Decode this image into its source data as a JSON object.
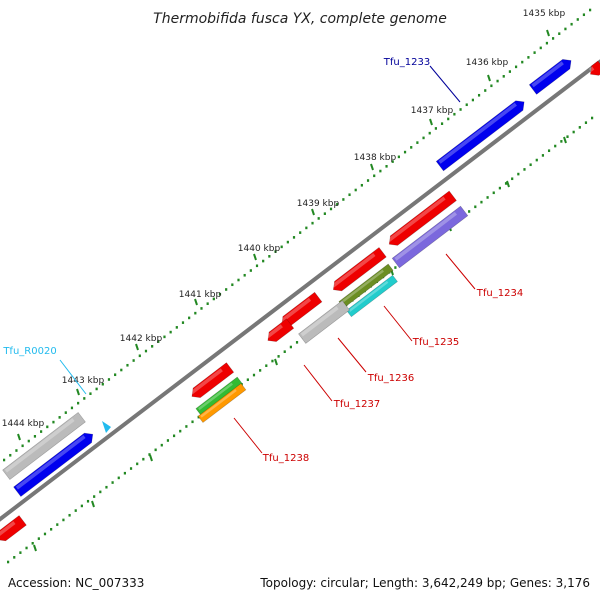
{
  "title": "Thermobifida fusca YX, complete genome",
  "footer": {
    "accession": "Accession: NC_007333",
    "summary": "Topology: circular; Length: 3,642,249 bp; Genes: 3,176"
  },
  "ruler": {
    "unit": "kbp",
    "ticks": [
      {
        "kbp": 1435,
        "label": "1435 kbp"
      },
      {
        "kbp": 1436,
        "label": "1436 kbp"
      },
      {
        "kbp": 1437,
        "label": "1437 kbp"
      },
      {
        "kbp": 1438,
        "label": "1438 kbp"
      },
      {
        "kbp": 1439,
        "label": "1439 kbp"
      },
      {
        "kbp": 1440,
        "label": "1440 kbp"
      },
      {
        "kbp": 1441,
        "label": "1441 kbp"
      },
      {
        "kbp": 1442,
        "label": "1442 kbp"
      },
      {
        "kbp": 1443,
        "label": "1443 kbp"
      },
      {
        "kbp": 1444,
        "label": "1444 kbp"
      }
    ]
  },
  "colors": {
    "backbone": "#777777",
    "forward_cds": "#0000ee",
    "reverse_cds": "#ee0000",
    "pseudo": "#bbbbbb",
    "purple": "#7b68dd",
    "olive": "#6b8e23",
    "cyan": "#22cccc",
    "green": "#33bb33",
    "orange": "#ff9900",
    "trna": "#22bbee",
    "ticks": "#228822"
  },
  "gene_labels": [
    {
      "name": "Tfu_1233",
      "color": "#000099"
    },
    {
      "name": "Tfu_R0020",
      "color": "#22bbee"
    },
    {
      "name": "Tfu_1234",
      "color": "#cc0000"
    },
    {
      "name": "Tfu_1235",
      "color": "#cc0000"
    },
    {
      "name": "Tfu_1236",
      "color": "#cc0000"
    },
    {
      "name": "Tfu_1237",
      "color": "#cc0000"
    },
    {
      "name": "Tfu_1238",
      "color": "#cc0000"
    }
  ]
}
